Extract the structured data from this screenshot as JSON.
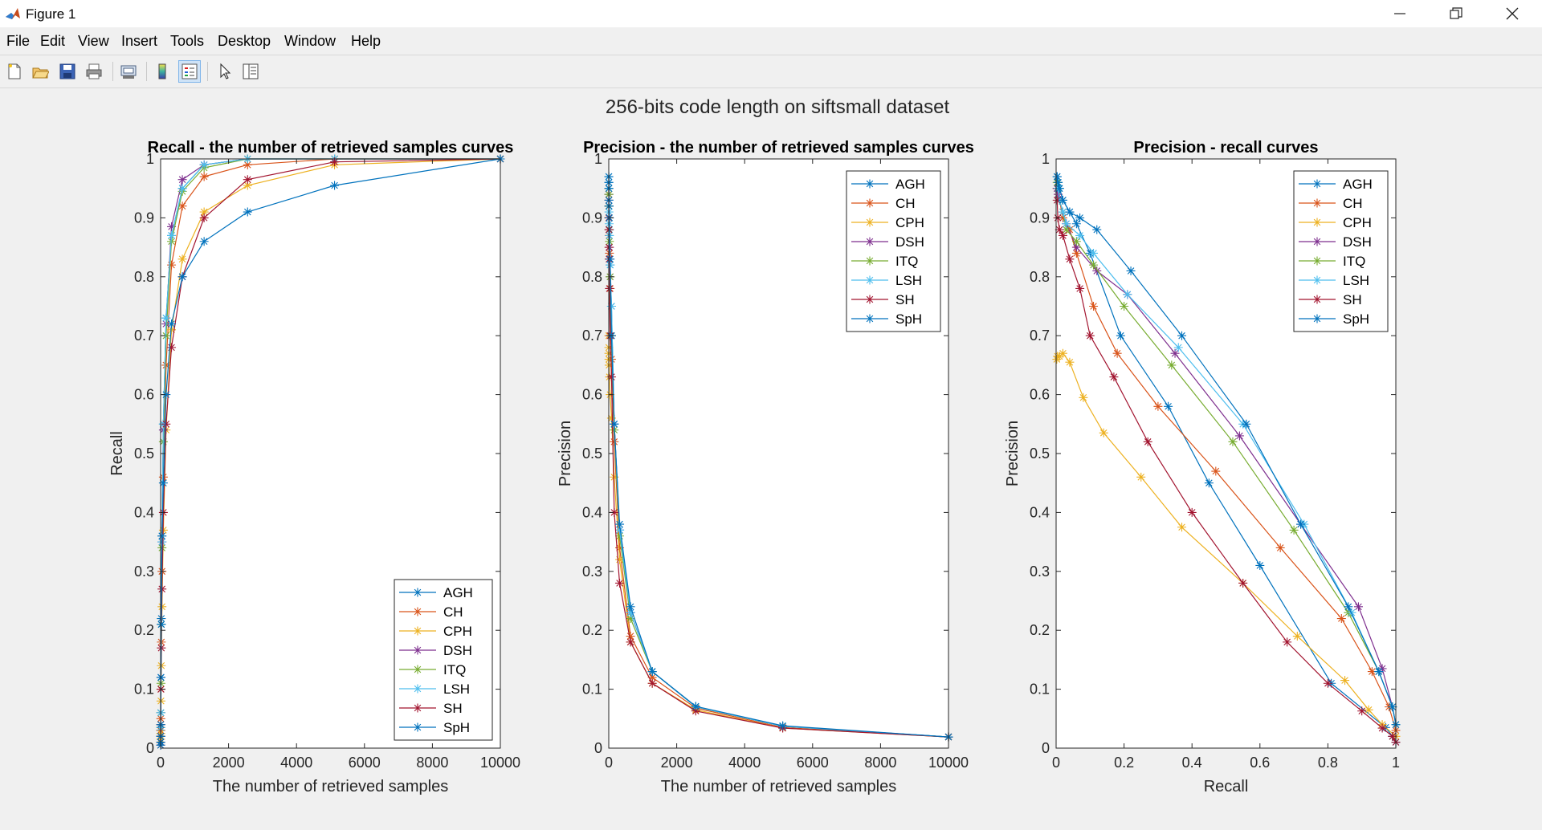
{
  "window": {
    "title": "Figure 1",
    "minimize_icon": "minimize-icon",
    "restore_icon": "restore-icon",
    "close_icon": "close-icon"
  },
  "menu": [
    "File",
    "Edit",
    "View",
    "Insert",
    "Tools",
    "Desktop",
    "Window",
    "Help"
  ],
  "toolbar": [
    "new-figure-icon",
    "open-file-icon",
    "save-icon",
    "print-icon",
    "print-preview-icon",
    "colorbar-icon",
    "legend-icon",
    "edit-plot-icon",
    "property-editor-icon"
  ],
  "figure_title": "256-bits code length on siftsmall dataset",
  "colors": {
    "AGH": "#0072bd",
    "CH": "#d95319",
    "CPH": "#edb120",
    "DSH": "#7e2f8e",
    "ITQ": "#77ac30",
    "LSH": "#4dbeee",
    "SH": "#a2142f",
    "SpH": "#0072bd"
  },
  "chart_data": [
    {
      "type": "line",
      "title": "Recall - the number of retrieved samples curves",
      "xlabel": "The number of retrieved samples",
      "ylabel": "Recall",
      "xlim": [
        0,
        10000
      ],
      "ylim": [
        0,
        1
      ],
      "xticks": [
        0,
        2000,
        4000,
        6000,
        8000,
        10000
      ],
      "yticks": [
        0,
        0.1,
        0.2,
        0.3,
        0.4,
        0.5,
        0.6,
        0.7,
        0.8,
        0.9,
        1
      ],
      "marker": "*",
      "grid": false,
      "legend": "bottom-right",
      "x": [
        1,
        2,
        3,
        5,
        10,
        20,
        40,
        80,
        160,
        320,
        640,
        1280,
        2560,
        5120,
        10000
      ],
      "series": [
        {
          "name": "AGH",
          "values": [
            0.01,
            0.02,
            0.03,
            0.06,
            0.12,
            0.22,
            0.36,
            0.55,
            0.73,
            0.87,
            0.95,
            0.99,
            1.0,
            1.0,
            1.0
          ]
        },
        {
          "name": "CH",
          "values": [
            0.01,
            0.02,
            0.03,
            0.05,
            0.1,
            0.18,
            0.3,
            0.46,
            0.65,
            0.82,
            0.92,
            0.97,
            0.99,
            1.0,
            1.0
          ]
        },
        {
          "name": "CPH",
          "values": [
            0.01,
            0.015,
            0.025,
            0.04,
            0.08,
            0.14,
            0.24,
            0.37,
            0.54,
            0.71,
            0.83,
            0.91,
            0.955,
            0.99,
            1.0
          ]
        },
        {
          "name": "DSH",
          "values": [
            0.01,
            0.02,
            0.035,
            0.06,
            0.12,
            0.21,
            0.35,
            0.54,
            0.72,
            0.885,
            0.965,
            0.99,
            1.0,
            1.0,
            1.0
          ]
        },
        {
          "name": "ITQ",
          "values": [
            0.01,
            0.02,
            0.035,
            0.06,
            0.11,
            0.21,
            0.34,
            0.52,
            0.7,
            0.86,
            0.945,
            0.985,
            1.0,
            1.0,
            1.0
          ]
        },
        {
          "name": "LSH",
          "values": [
            0.01,
            0.02,
            0.035,
            0.06,
            0.12,
            0.21,
            0.35,
            0.55,
            0.73,
            0.87,
            0.95,
            0.99,
            1.0,
            1.0,
            1.0
          ]
        },
        {
          "name": "SH",
          "values": [
            0.005,
            0.01,
            0.02,
            0.04,
            0.1,
            0.17,
            0.27,
            0.4,
            0.55,
            0.68,
            0.8,
            0.9,
            0.965,
            0.995,
            1.0
          ]
        },
        {
          "name": "SpH",
          "values": [
            0.005,
            0.01,
            0.02,
            0.04,
            0.12,
            0.21,
            0.36,
            0.45,
            0.6,
            0.72,
            0.8,
            0.86,
            0.91,
            0.955,
            1.0
          ]
        }
      ]
    },
    {
      "type": "line",
      "title": "Precision - the number of retrieved samples curves",
      "xlabel": "The number of retrieved samples",
      "ylabel": "Precision",
      "xlim": [
        0,
        10000
      ],
      "ylim": [
        0,
        1
      ],
      "xticks": [
        0,
        2000,
        4000,
        6000,
        8000,
        10000
      ],
      "yticks": [
        0,
        0.1,
        0.2,
        0.3,
        0.4,
        0.5,
        0.6,
        0.7,
        0.8,
        0.9,
        1
      ],
      "marker": "*",
      "grid": false,
      "legend": "top-right",
      "x": [
        1,
        2,
        3,
        5,
        10,
        20,
        40,
        80,
        160,
        320,
        640,
        1280,
        2560,
        5120,
        10000
      ],
      "series": [
        {
          "name": "AGH",
          "values": [
            0.97,
            0.96,
            0.94,
            0.92,
            0.9,
            0.88,
            0.82,
            0.75,
            0.55,
            0.37,
            0.23,
            0.13,
            0.07,
            0.037,
            0.019
          ]
        },
        {
          "name": "CH",
          "values": [
            0.95,
            0.94,
            0.92,
            0.9,
            0.87,
            0.84,
            0.78,
            0.66,
            0.52,
            0.34,
            0.19,
            0.12,
            0.068,
            0.035,
            0.019
          ]
        },
        {
          "name": "CPH",
          "values": [
            0.7,
            0.68,
            0.67,
            0.66,
            0.65,
            0.63,
            0.6,
            0.56,
            0.46,
            0.32,
            0.18,
            0.11,
            0.065,
            0.034,
            0.019
          ]
        },
        {
          "name": "DSH",
          "values": [
            0.95,
            0.94,
            0.92,
            0.9,
            0.88,
            0.85,
            0.8,
            0.7,
            0.55,
            0.37,
            0.23,
            0.13,
            0.07,
            0.037,
            0.019
          ]
        },
        {
          "name": "ITQ",
          "values": [
            0.95,
            0.94,
            0.92,
            0.9,
            0.88,
            0.86,
            0.8,
            0.7,
            0.54,
            0.36,
            0.22,
            0.13,
            0.07,
            0.037,
            0.019
          ]
        },
        {
          "name": "LSH",
          "values": [
            0.97,
            0.95,
            0.93,
            0.91,
            0.89,
            0.87,
            0.82,
            0.75,
            0.55,
            0.37,
            0.23,
            0.13,
            0.07,
            0.037,
            0.019
          ]
        },
        {
          "name": "SH",
          "values": [
            0.93,
            0.9,
            0.88,
            0.85,
            0.83,
            0.78,
            0.7,
            0.63,
            0.4,
            0.28,
            0.18,
            0.11,
            0.063,
            0.034,
            0.019
          ]
        },
        {
          "name": "SpH",
          "values": [
            0.97,
            0.96,
            0.95,
            0.93,
            0.92,
            0.9,
            0.83,
            0.7,
            0.55,
            0.38,
            0.24,
            0.13,
            0.071,
            0.038,
            0.019
          ]
        }
      ]
    },
    {
      "type": "line",
      "title": "Precision - recall curves",
      "xlabel": "Recall",
      "ylabel": "Precision",
      "xlim": [
        0,
        1
      ],
      "ylim": [
        0,
        1
      ],
      "xticks": [
        0,
        0.2,
        0.4,
        0.6,
        0.8,
        1
      ],
      "yticks": [
        0,
        0.1,
        0.2,
        0.3,
        0.4,
        0.5,
        0.6,
        0.7,
        0.8,
        0.9,
        1
      ],
      "marker": "*",
      "grid": false,
      "legend": "top-right",
      "series": [
        {
          "name": "AGH",
          "x": [
            0.003,
            0.006,
            0.01,
            0.02,
            0.04,
            0.06,
            0.1,
            0.19,
            0.33,
            0.45,
            0.6,
            0.81,
            0.97,
            0.99,
            1.0
          ],
          "y": [
            0.97,
            0.96,
            0.95,
            0.93,
            0.91,
            0.89,
            0.84,
            0.7,
            0.58,
            0.45,
            0.31,
            0.11,
            0.035,
            0.02,
            0.01
          ]
        },
        {
          "name": "CH",
          "x": [
            0.003,
            0.006,
            0.01,
            0.02,
            0.04,
            0.06,
            0.11,
            0.18,
            0.3,
            0.47,
            0.66,
            0.84,
            0.93,
            0.98,
            1.0
          ],
          "y": [
            0.95,
            0.94,
            0.93,
            0.9,
            0.88,
            0.84,
            0.75,
            0.67,
            0.58,
            0.47,
            0.34,
            0.22,
            0.13,
            0.07,
            0.03
          ]
        },
        {
          "name": "CPH",
          "x": [
            0.002,
            0.004,
            0.01,
            0.02,
            0.04,
            0.08,
            0.14,
            0.25,
            0.37,
            0.55,
            0.71,
            0.85,
            0.92,
            0.96,
            1.0
          ],
          "y": [
            0.66,
            0.665,
            0.665,
            0.67,
            0.655,
            0.595,
            0.535,
            0.46,
            0.375,
            0.28,
            0.19,
            0.115,
            0.065,
            0.04,
            0.02
          ]
        },
        {
          "name": "DSH",
          "x": [
            0.003,
            0.006,
            0.01,
            0.02,
            0.03,
            0.06,
            0.12,
            0.21,
            0.35,
            0.54,
            0.72,
            0.89,
            0.96,
            0.99,
            1.0
          ],
          "y": [
            0.95,
            0.94,
            0.93,
            0.91,
            0.89,
            0.85,
            0.81,
            0.77,
            0.67,
            0.53,
            0.38,
            0.24,
            0.135,
            0.07,
            0.04
          ]
        },
        {
          "name": "ITQ",
          "x": [
            0.003,
            0.006,
            0.01,
            0.02,
            0.03,
            0.06,
            0.11,
            0.2,
            0.34,
            0.52,
            0.7,
            0.86,
            0.95,
            0.99,
            1.0
          ],
          "y": [
            0.96,
            0.95,
            0.93,
            0.91,
            0.88,
            0.86,
            0.82,
            0.75,
            0.65,
            0.52,
            0.37,
            0.23,
            0.13,
            0.07,
            0.04
          ]
        },
        {
          "name": "LSH",
          "x": [
            0.003,
            0.006,
            0.01,
            0.02,
            0.03,
            0.07,
            0.11,
            0.21,
            0.36,
            0.55,
            0.73,
            0.87,
            0.95,
            0.99,
            1.0
          ],
          "y": [
            0.97,
            0.95,
            0.93,
            0.91,
            0.89,
            0.87,
            0.84,
            0.77,
            0.68,
            0.55,
            0.38,
            0.23,
            0.13,
            0.07,
            0.04
          ]
        },
        {
          "name": "SH",
          "x": [
            0.003,
            0.005,
            0.01,
            0.02,
            0.04,
            0.07,
            0.1,
            0.17,
            0.27,
            0.4,
            0.55,
            0.68,
            0.8,
            0.9,
            0.96,
            0.99,
            1.0
          ],
          "y": [
            0.93,
            0.9,
            0.88,
            0.87,
            0.83,
            0.78,
            0.7,
            0.63,
            0.52,
            0.4,
            0.28,
            0.18,
            0.11,
            0.063,
            0.034,
            0.02,
            0.01
          ]
        },
        {
          "name": "SpH",
          "x": [
            0.003,
            0.006,
            0.01,
            0.02,
            0.04,
            0.07,
            0.12,
            0.22,
            0.37,
            0.56,
            0.72,
            0.86,
            0.95,
            0.99,
            1.0
          ],
          "y": [
            0.97,
            0.96,
            0.95,
            0.93,
            0.91,
            0.9,
            0.88,
            0.81,
            0.7,
            0.55,
            0.38,
            0.24,
            0.13,
            0.07,
            0.04
          ]
        }
      ]
    }
  ]
}
